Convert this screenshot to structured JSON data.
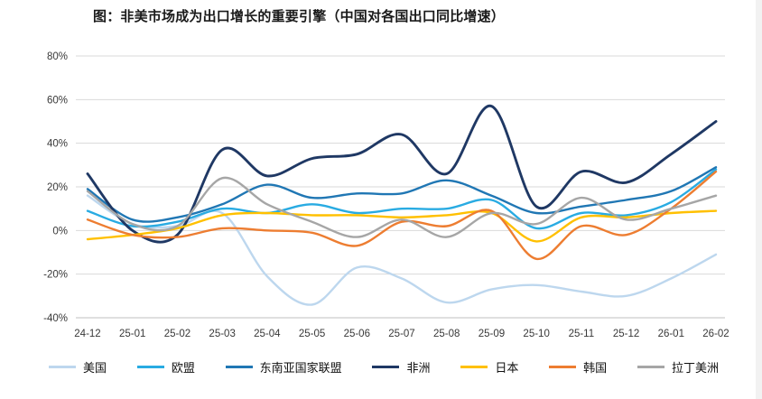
{
  "title": "图：非美市场成为出口增长的重要引擎（中国对各国出口同比增速）",
  "chart_data": {
    "type": "line",
    "smooth": true,
    "grid": true,
    "legend_position": "bottom",
    "ylim": [
      -40,
      80
    ],
    "yticks": [
      -40,
      -20,
      0,
      20,
      40,
      60,
      80
    ],
    "ytick_suffix": "%",
    "categories": [
      "24-12",
      "25-01",
      "25-02",
      "25-03",
      "25-04",
      "25-05",
      "25-06",
      "25-07",
      "25-08",
      "25-09",
      "25-10",
      "25-11",
      "25-12",
      "26-01",
      "26-02"
    ],
    "series": [
      {
        "id": "usa",
        "name": "美国",
        "color": "#bdd7ee",
        "values": [
          16,
          3,
          2,
          8,
          -21,
          -34,
          -17,
          -22,
          -33,
          -27,
          -25,
          -28,
          -30,
          -22,
          -11
        ]
      },
      {
        "id": "eu",
        "name": "欧盟",
        "color": "#29abe2",
        "values": [
          9,
          2,
          4,
          10,
          8,
          12,
          8,
          10,
          10,
          14,
          1,
          8,
          7,
          13,
          28
        ]
      },
      {
        "id": "asean",
        "name": "东南亚国家联盟",
        "color": "#2077b4",
        "values": [
          19,
          5,
          6,
          12,
          21,
          15,
          17,
          17,
          23,
          16,
          8,
          11,
          14,
          18,
          29
        ]
      },
      {
        "id": "africa",
        "name": "非洲",
        "color": "#1f3864",
        "values": [
          26,
          0,
          -2,
          37,
          25,
          33,
          35,
          44,
          26,
          57,
          11,
          27,
          22,
          35,
          50
        ]
      },
      {
        "id": "japan",
        "name": "日本",
        "color": "#ffc000",
        "values": [
          -4,
          -2,
          1,
          7,
          8,
          7,
          7,
          6,
          7,
          8,
          -5,
          6,
          6,
          8,
          9
        ]
      },
      {
        "id": "korea",
        "name": "韩国",
        "color": "#ed7d31",
        "values": [
          5,
          -2,
          -3,
          1,
          0,
          -1,
          -7,
          4,
          2,
          9,
          -13,
          2,
          -2,
          10,
          27
        ]
      },
      {
        "id": "latam",
        "name": "拉丁美洲",
        "color": "#a6a6a6",
        "values": [
          18,
          3,
          2,
          24,
          12,
          4,
          -3,
          5,
          -3,
          8,
          3,
          15,
          5,
          10,
          16
        ]
      }
    ]
  }
}
